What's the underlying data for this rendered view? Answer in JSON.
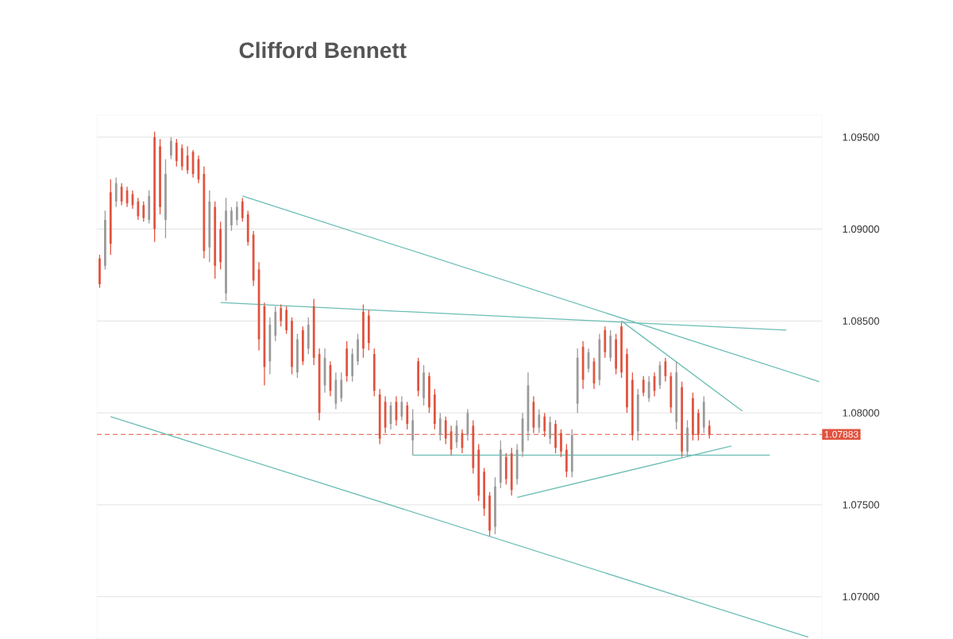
{
  "chart_data": {
    "type": "candlestick",
    "title": "Clifford Bennett",
    "categories": [
      null,
      null,
      null,
      null,
      null,
      null,
      null,
      null,
      null,
      null,
      null,
      null,
      null,
      null,
      null,
      null,
      null,
      null,
      null,
      null,
      null,
      null,
      null,
      null,
      null,
      null,
      null,
      null,
      null,
      null,
      null,
      null,
      null,
      null,
      null,
      null,
      null,
      null,
      null,
      null,
      null,
      null,
      null,
      null,
      null,
      null,
      null,
      null,
      null,
      null,
      null,
      null,
      null,
      null,
      null,
      null,
      null,
      null,
      null,
      null,
      null,
      null,
      null,
      null,
      null,
      null,
      null,
      null,
      null,
      null,
      null,
      null,
      null,
      null,
      null,
      null,
      null,
      null,
      null,
      null,
      null,
      null,
      null,
      null,
      null,
      null,
      null,
      null,
      null,
      null,
      null,
      null,
      null,
      null,
      null,
      null,
      null,
      null,
      null,
      null,
      null,
      null,
      null,
      null,
      null,
      null,
      null,
      null,
      null,
      null,
      null,
      null,
      null,
      null,
      null,
      null,
      null,
      null,
      null,
      null,
      null,
      null,
      null,
      null,
      null,
      null,
      null,
      null,
      null,
      null,
      null,
      null
    ],
    "ohlc": [
      [
        1.0884,
        1.0886,
        1.0868,
        1.087
      ],
      [
        1.088,
        1.091,
        1.0878,
        1.0905
      ],
      [
        1.092,
        1.0927,
        1.0886,
        1.0892
      ],
      [
        1.0915,
        1.0928,
        1.0912,
        1.0925
      ],
      [
        1.0923,
        1.0925,
        1.0913,
        1.0915
      ],
      [
        1.0921,
        1.0923,
        1.0912,
        1.0914
      ],
      [
        1.0919,
        1.0921,
        1.0911,
        1.0913
      ],
      [
        1.0915,
        1.0917,
        1.0905,
        1.0907
      ],
      [
        1.0913,
        1.0915,
        1.0904,
        1.0906
      ],
      [
        1.0905,
        1.0921,
        1.0903,
        1.0918
      ],
      [
        1.095,
        1.0953,
        1.0893,
        1.09
      ],
      [
        1.0945,
        1.0949,
        1.0908,
        1.0912
      ],
      [
        1.0905,
        1.0938,
        1.0895,
        1.093
      ],
      [
        1.094,
        1.095,
        1.0938,
        1.0948
      ],
      [
        1.0947,
        1.0949,
        1.0934,
        1.0937
      ],
      [
        1.0944,
        1.0946,
        1.0932,
        1.0934
      ],
      [
        1.094,
        1.0945,
        1.093,
        1.0932
      ],
      [
        1.0942,
        1.0943,
        1.0928,
        1.093
      ],
      [
        1.0938,
        1.094,
        1.0925,
        1.0927
      ],
      [
        1.093,
        1.0934,
        1.0884,
        1.0888
      ],
      [
        1.089,
        1.0921,
        1.0882,
        1.0915
      ],
      [
        1.0912,
        1.0915,
        1.0873,
        1.088
      ],
      [
        1.09,
        1.0904,
        1.0878,
        1.0882
      ],
      [
        1.0865,
        1.0917,
        1.0861,
        1.091
      ],
      [
        1.0902,
        1.0912,
        1.0899,
        1.091
      ],
      [
        1.0905,
        1.0915,
        1.0902,
        1.0912
      ],
      [
        1.0915,
        1.0917,
        1.0904,
        1.0906
      ],
      [
        1.0908,
        1.091,
        1.0891,
        1.0893
      ],
      [
        1.0897,
        1.0899,
        1.0869,
        1.0872
      ],
      [
        1.0878,
        1.0882,
        1.0834,
        1.084
      ],
      [
        1.0858,
        1.086,
        1.0815,
        1.0825
      ],
      [
        1.0828,
        1.0852,
        1.0821,
        1.0848
      ],
      [
        1.0842,
        1.0858,
        1.0839,
        1.0855
      ],
      [
        1.0857,
        1.0859,
        1.0847,
        1.085
      ],
      [
        1.0856,
        1.0858,
        1.0843,
        1.0845
      ],
      [
        1.085,
        1.0852,
        1.0821,
        1.0825
      ],
      [
        1.0822,
        1.0843,
        1.0819,
        1.084
      ],
      [
        1.0845,
        1.0847,
        1.0826,
        1.0828
      ],
      [
        1.0835,
        1.0852,
        1.0832,
        1.0848
      ],
      [
        1.0858,
        1.0862,
        1.0826,
        1.083
      ],
      [
        1.0832,
        1.0835,
        1.0796,
        1.08
      ],
      [
        1.0815,
        1.0835,
        1.0811,
        1.083
      ],
      [
        1.0826,
        1.0828,
        1.0809,
        1.0812
      ],
      [
        1.0805,
        1.0822,
        1.0802,
        1.0818
      ],
      [
        1.0808,
        1.0822,
        1.0806,
        1.0818
      ],
      [
        1.0835,
        1.0839,
        1.0817,
        1.082
      ],
      [
        1.082,
        1.0835,
        1.0817,
        1.0832
      ],
      [
        1.0828,
        1.0843,
        1.0826,
        1.084
      ],
      [
        1.0855,
        1.0859,
        1.083,
        1.0835
      ],
      [
        1.0853,
        1.0856,
        1.0834,
        1.0838
      ],
      [
        1.0832,
        1.0835,
        1.0809,
        1.0812
      ],
      [
        1.081,
        1.0813,
        1.0783,
        1.0786
      ],
      [
        1.0806,
        1.0809,
        1.0789,
        1.0792
      ],
      [
        1.0794,
        1.0806,
        1.0791,
        1.0804
      ],
      [
        1.0806,
        1.0809,
        1.0793,
        1.0796
      ],
      [
        1.0798,
        1.0809,
        1.0796,
        1.0806
      ],
      [
        1.0804,
        1.0806,
        1.0791,
        1.0794
      ],
      [
        1.0785,
        1.0802,
        1.0777,
        1.0796
      ],
      [
        1.0828,
        1.083,
        1.0809,
        1.0812
      ],
      [
        1.0808,
        1.0826,
        1.0804,
        1.0822
      ],
      [
        1.082,
        1.0822,
        1.08,
        1.0803
      ],
      [
        1.081,
        1.0813,
        1.0791,
        1.0794
      ],
      [
        1.0788,
        1.08,
        1.0785,
        1.0797
      ],
      [
        1.0796,
        1.0798,
        1.0783,
        1.0786
      ],
      [
        1.079,
        1.0793,
        1.0777,
        1.078
      ],
      [
        1.0784,
        1.0796,
        1.0781,
        1.0793
      ],
      [
        1.0789,
        1.0791,
        1.0778,
        1.0781
      ],
      [
        1.0788,
        1.0802,
        1.0785,
        1.08
      ],
      [
        1.0793,
        1.0796,
        1.0767,
        1.077
      ],
      [
        1.078,
        1.0783,
        1.0752,
        1.0755
      ],
      [
        1.0768,
        1.077,
        1.0744,
        1.0748
      ],
      [
        1.0755,
        1.0757,
        1.0733,
        1.0736
      ],
      [
        1.0738,
        1.0765,
        1.0734,
        1.076
      ],
      [
        1.0762,
        1.0785,
        1.0759,
        1.078
      ],
      [
        1.0776,
        1.0778,
        1.0761,
        1.0764
      ],
      [
        1.0778,
        1.0781,
        1.0755,
        1.0758
      ],
      [
        1.0764,
        1.0783,
        1.0761,
        1.078
      ],
      [
        1.0779,
        1.08,
        1.0776,
        1.0797
      ],
      [
        1.079,
        1.0822,
        1.0785,
        1.0815
      ],
      [
        1.0806,
        1.0809,
        1.0789,
        1.0792
      ],
      [
        1.0792,
        1.0802,
        1.0789,
        1.0799
      ],
      [
        1.0798,
        1.08,
        1.0787,
        1.079
      ],
      [
        1.0786,
        1.0798,
        1.0783,
        1.0795
      ],
      [
        1.0794,
        1.0796,
        1.0778,
        1.0781
      ],
      [
        1.0789,
        1.0791,
        1.0776,
        1.0779
      ],
      [
        1.078,
        1.0783,
        1.0765,
        1.0768
      ],
      [
        1.0768,
        1.0791,
        1.0765,
        1.0788
      ],
      [
        1.0805,
        1.0835,
        1.08,
        1.083
      ],
      [
        1.0836,
        1.0839,
        1.0813,
        1.0818
      ],
      [
        1.0824,
        1.0835,
        1.0822,
        1.0833
      ],
      [
        1.0828,
        1.083,
        1.0813,
        1.0816
      ],
      [
        1.0818,
        1.0843,
        1.0815,
        1.084
      ],
      [
        1.0845,
        1.0847,
        1.083,
        1.0833
      ],
      [
        1.083,
        1.0845,
        1.0828,
        1.0842
      ],
      [
        1.084,
        1.0843,
        1.0821,
        1.0824
      ],
      [
        1.0847,
        1.0849,
        1.0819,
        1.0822
      ],
      [
        1.0832,
        1.0835,
        1.08,
        1.0803
      ],
      [
        1.0818,
        1.0822,
        1.0785,
        1.0788
      ],
      [
        1.079,
        1.0813,
        1.0785,
        1.081
      ],
      [
        1.0818,
        1.082,
        1.0809,
        1.0811
      ],
      [
        1.0808,
        1.082,
        1.0806,
        1.0817
      ],
      [
        1.082,
        1.0822,
        1.0809,
        1.0812
      ],
      [
        1.0815,
        1.0828,
        1.0813,
        1.0826
      ],
      [
        1.0828,
        1.083,
        1.0817,
        1.082
      ],
      [
        1.082,
        1.0822,
        1.08,
        1.0803
      ],
      [
        1.0795,
        1.0828,
        1.0791,
        1.0822
      ],
      [
        1.0814,
        1.0817,
        1.0776,
        1.0779
      ],
      [
        1.0779,
        1.0796,
        1.0776,
        1.0792
      ],
      [
        1.0808,
        1.0811,
        1.0785,
        1.0788
      ],
      [
        1.08,
        1.0802,
        1.0785,
        1.0788
      ],
      [
        1.0792,
        1.0809,
        1.0789,
        1.0806
      ],
      [
        1.0793,
        1.0796,
        1.0786,
        1.0788
      ],
      null,
      null,
      null,
      null,
      null,
      null,
      null,
      null,
      null,
      null,
      null,
      null,
      null,
      null,
      null,
      null,
      null,
      null,
      null,
      null
    ],
    "colors": [
      "#e0533f",
      "#9a9a9a",
      "#e0533f",
      "#9a9a9a",
      "#e0533f",
      "#e0533f",
      "#e0533f",
      "#e0533f",
      "#e0533f",
      "#9a9a9a",
      "#e0533f",
      "#e0533f",
      "#9a9a9a",
      "#9a9a9a",
      "#e0533f",
      "#e0533f",
      "#e0533f",
      "#e0533f",
      "#e0533f",
      "#e0533f",
      "#9a9a9a",
      "#e0533f",
      "#e0533f",
      "#9a9a9a",
      "#9a9a9a",
      "#9a9a9a",
      "#e0533f",
      "#e0533f",
      "#e0533f",
      "#e0533f",
      "#e0533f",
      "#9a9a9a",
      "#9a9a9a",
      "#e0533f",
      "#e0533f",
      "#e0533f",
      "#9a9a9a",
      "#e0533f",
      "#9a9a9a",
      "#e0533f",
      "#e0533f",
      "#9a9a9a",
      "#e0533f",
      "#9a9a9a",
      "#9a9a9a",
      "#e0533f",
      "#9a9a9a",
      "#9a9a9a",
      "#e0533f",
      "#e0533f",
      "#e0533f",
      "#e0533f",
      "#e0533f",
      "#9a9a9a",
      "#e0533f",
      "#9a9a9a",
      "#e0533f",
      "#9a9a9a",
      "#e0533f",
      "#9a9a9a",
      "#e0533f",
      "#e0533f",
      "#9a9a9a",
      "#e0533f",
      "#e0533f",
      "#9a9a9a",
      "#e0533f",
      "#9a9a9a",
      "#e0533f",
      "#e0533f",
      "#e0533f",
      "#e0533f",
      "#9a9a9a",
      "#9a9a9a",
      "#e0533f",
      "#e0533f",
      "#9a9a9a",
      "#9a9a9a",
      "#9a9a9a",
      "#e0533f",
      "#9a9a9a",
      "#e0533f",
      "#9a9a9a",
      "#e0533f",
      "#e0533f",
      "#e0533f",
      "#9a9a9a",
      "#9a9a9a",
      "#e0533f",
      "#9a9a9a",
      "#e0533f",
      "#9a9a9a",
      "#e0533f",
      "#9a9a9a",
      "#e0533f",
      "#e0533f",
      "#e0533f",
      "#e0533f",
      "#9a9a9a",
      "#e0533f",
      "#9a9a9a",
      "#e0533f",
      "#9a9a9a",
      "#e0533f",
      "#e0533f",
      "#9a9a9a",
      "#e0533f",
      "#9a9a9a",
      "#e0533f",
      "#e0533f",
      "#9a9a9a",
      "#e0533f",
      null,
      null,
      null,
      null,
      null,
      null,
      null,
      null,
      null,
      null,
      null,
      null,
      null,
      null,
      null,
      null,
      null,
      null,
      null,
      null
    ],
    "series": [
      {
        "type": "line",
        "color": "#6bbdb5",
        "values": [
          null,
          null,
          1.0798,
          null,
          null,
          null,
          null,
          null,
          null,
          null,
          null,
          null,
          null,
          null,
          null,
          null,
          null,
          null,
          null,
          null,
          null,
          null,
          null,
          null,
          null,
          null,
          null,
          null,
          null,
          null,
          null,
          null,
          null,
          null,
          null,
          null,
          null,
          null,
          null,
          null,
          null,
          null,
          null,
          null,
          null,
          null,
          null,
          null,
          null,
          null,
          null,
          null,
          null,
          null,
          null,
          null,
          null,
          null,
          null,
          null,
          null,
          null,
          null,
          null,
          null,
          null,
          null,
          null,
          null,
          null,
          null,
          null,
          null,
          null,
          null,
          null,
          null,
          null,
          null,
          null,
          null,
          null,
          null,
          null,
          null,
          null,
          null,
          null,
          null,
          null,
          null,
          null,
          null,
          null,
          null,
          null,
          null,
          null,
          null,
          null,
          null,
          null,
          null,
          null,
          null,
          null,
          null,
          null,
          null,
          null,
          null,
          null,
          null,
          null,
          null,
          null,
          null,
          null,
          null,
          null,
          null,
          null,
          null,
          null,
          null,
          null,
          null,
          null,
          null,
          1.0678,
          null,
          null
        ]
      },
      {
        "type": "line",
        "color": "#6bbdb5",
        "values": [
          null,
          null,
          null,
          null,
          null,
          null,
          null,
          null,
          null,
          null,
          null,
          null,
          null,
          null,
          null,
          null,
          null,
          null,
          null,
          null,
          null,
          null,
          null,
          null,
          null,
          null,
          1.0918,
          null,
          null,
          null,
          null,
          null,
          null,
          null,
          null,
          null,
          null,
          null,
          null,
          null,
          null,
          null,
          null,
          null,
          null,
          null,
          null,
          null,
          null,
          null,
          null,
          null,
          null,
          null,
          null,
          null,
          null,
          null,
          null,
          null,
          null,
          null,
          null,
          null,
          null,
          null,
          null,
          null,
          null,
          null,
          null,
          null,
          null,
          null,
          null,
          null,
          null,
          null,
          null,
          null,
          null,
          null,
          null,
          null,
          null,
          null,
          null,
          null,
          null,
          null,
          null,
          null,
          null,
          null,
          null,
          null,
          null,
          null,
          null,
          null,
          null,
          null,
          null,
          null,
          null,
          null,
          null,
          null,
          null,
          null,
          null,
          null,
          null,
          null,
          null,
          null,
          null,
          null,
          null,
          null,
          null,
          null,
          null,
          null,
          null,
          null,
          null,
          null,
          null,
          null,
          null,
          1.0817
        ]
      },
      {
        "type": "line",
        "color": "#6bbdb5",
        "values": [
          null,
          null,
          null,
          null,
          null,
          null,
          null,
          null,
          null,
          null,
          null,
          null,
          null,
          null,
          null,
          null,
          null,
          null,
          null,
          null,
          null,
          null,
          1.086,
          null,
          null,
          null,
          null,
          null,
          null,
          null,
          null,
          null,
          null,
          null,
          null,
          null,
          null,
          null,
          null,
          null,
          null,
          null,
          null,
          null,
          null,
          null,
          null,
          null,
          null,
          null,
          null,
          null,
          null,
          null,
          null,
          null,
          null,
          null,
          null,
          null,
          null,
          null,
          null,
          null,
          null,
          null,
          null,
          null,
          null,
          null,
          null,
          null,
          null,
          null,
          null,
          null,
          null,
          null,
          null,
          null,
          null,
          null,
          null,
          null,
          null,
          null,
          null,
          null,
          null,
          null,
          null,
          null,
          null,
          null,
          null,
          null,
          null,
          null,
          null,
          null,
          null,
          null,
          null,
          null,
          null,
          null,
          null,
          null,
          null,
          null,
          null,
          null,
          null,
          null,
          null,
          null,
          null,
          null,
          null,
          null,
          null,
          null,
          null,
          null,
          null,
          1.0845,
          null,
          null,
          null,
          null,
          null,
          null
        ]
      },
      {
        "type": "line",
        "color": "#6bbdb5",
        "values": [
          null,
          null,
          null,
          null,
          null,
          null,
          null,
          null,
          null,
          null,
          null,
          null,
          null,
          null,
          null,
          null,
          null,
          null,
          null,
          null,
          null,
          null,
          null,
          null,
          null,
          null,
          null,
          null,
          null,
          null,
          null,
          null,
          null,
          null,
          null,
          null,
          null,
          null,
          null,
          null,
          null,
          null,
          null,
          null,
          null,
          null,
          null,
          null,
          null,
          null,
          null,
          null,
          null,
          null,
          null,
          null,
          null,
          null,
          null,
          null,
          null,
          null,
          null,
          null,
          null,
          null,
          null,
          null,
          null,
          null,
          null,
          null,
          null,
          null,
          null,
          null,
          null,
          null,
          null,
          null,
          null,
          null,
          null,
          null,
          null,
          null,
          null,
          null,
          null,
          null,
          null,
          null,
          null,
          null,
          null,
          1.085,
          null,
          null,
          null,
          null,
          null,
          null,
          null,
          null,
          null,
          null,
          null,
          null,
          null,
          null,
          null,
          null,
          null,
          null,
          null,
          null,
          null,
          1.0801,
          null,
          null,
          null,
          null,
          null,
          null,
          null,
          null,
          null,
          null,
          null,
          null,
          null,
          null
        ]
      },
      {
        "type": "line",
        "color": "#6bbdb5",
        "values": [
          null,
          null,
          null,
          null,
          null,
          null,
          null,
          null,
          null,
          null,
          null,
          null,
          null,
          null,
          null,
          null,
          null,
          null,
          null,
          null,
          null,
          null,
          null,
          null,
          null,
          null,
          null,
          null,
          null,
          null,
          null,
          null,
          null,
          null,
          null,
          null,
          null,
          null,
          null,
          null,
          null,
          null,
          null,
          null,
          null,
          null,
          null,
          null,
          null,
          null,
          null,
          null,
          null,
          null,
          null,
          null,
          null,
          1.0777,
          null,
          null,
          null,
          null,
          null,
          null,
          null,
          null,
          null,
          null,
          null,
          null,
          null,
          null,
          null,
          null,
          null,
          null,
          null,
          null,
          null,
          null,
          null,
          null,
          null,
          null,
          null,
          null,
          null,
          null,
          null,
          null,
          null,
          null,
          null,
          null,
          null,
          null,
          null,
          null,
          null,
          null,
          null,
          null,
          null,
          null,
          null,
          null,
          null,
          null,
          null,
          null,
          null,
          null,
          null,
          null,
          null,
          null,
          null,
          null,
          null,
          null,
          null,
          null,
          1.0777,
          null,
          null,
          null,
          null,
          null,
          null,
          null,
          null,
          null
        ]
      },
      {
        "type": "line",
        "color": "#6bbdb5",
        "values": [
          null,
          null,
          null,
          null,
          null,
          null,
          null,
          null,
          null,
          null,
          null,
          null,
          null,
          null,
          null,
          null,
          null,
          null,
          null,
          null,
          null,
          null,
          null,
          null,
          null,
          null,
          null,
          null,
          null,
          null,
          null,
          null,
          null,
          null,
          null,
          null,
          null,
          null,
          null,
          null,
          null,
          null,
          null,
          null,
          null,
          null,
          null,
          null,
          null,
          null,
          null,
          null,
          null,
          null,
          null,
          null,
          null,
          null,
          null,
          null,
          null,
          null,
          null,
          null,
          null,
          null,
          null,
          null,
          null,
          null,
          null,
          null,
          null,
          null,
          null,
          null,
          1.0754,
          null,
          null,
          null,
          null,
          null,
          null,
          null,
          null,
          null,
          null,
          null,
          null,
          null,
          null,
          null,
          null,
          null,
          null,
          null,
          null,
          null,
          null,
          null,
          null,
          null,
          null,
          null,
          null,
          null,
          null,
          null,
          null,
          null,
          null,
          null,
          null,
          null,
          null,
          1.0782,
          null,
          null,
          null,
          null,
          null,
          null,
          null,
          null,
          null,
          null,
          null,
          null,
          null,
          null,
          null,
          null
        ]
      }
    ],
    "ref_lines": [
      {
        "axis": "y",
        "value": 1.07883,
        "label": "1.07883",
        "color": "#e0533f",
        "line_style": "dashed"
      }
    ],
    "ylim": [
      1.0677,
      1.0962
    ],
    "yticks": [
      {
        "value": 1.07,
        "label": "1.07000"
      },
      {
        "value": 1.075,
        "label": "1.07500"
      },
      {
        "value": 1.08,
        "label": "1.08000"
      },
      {
        "value": 1.085,
        "label": "1.08500"
      },
      {
        "value": 1.09,
        "label": "1.09000"
      },
      {
        "value": 1.095,
        "label": "1.09500"
      }
    ],
    "grid": "y",
    "tick_labels": "y"
  }
}
